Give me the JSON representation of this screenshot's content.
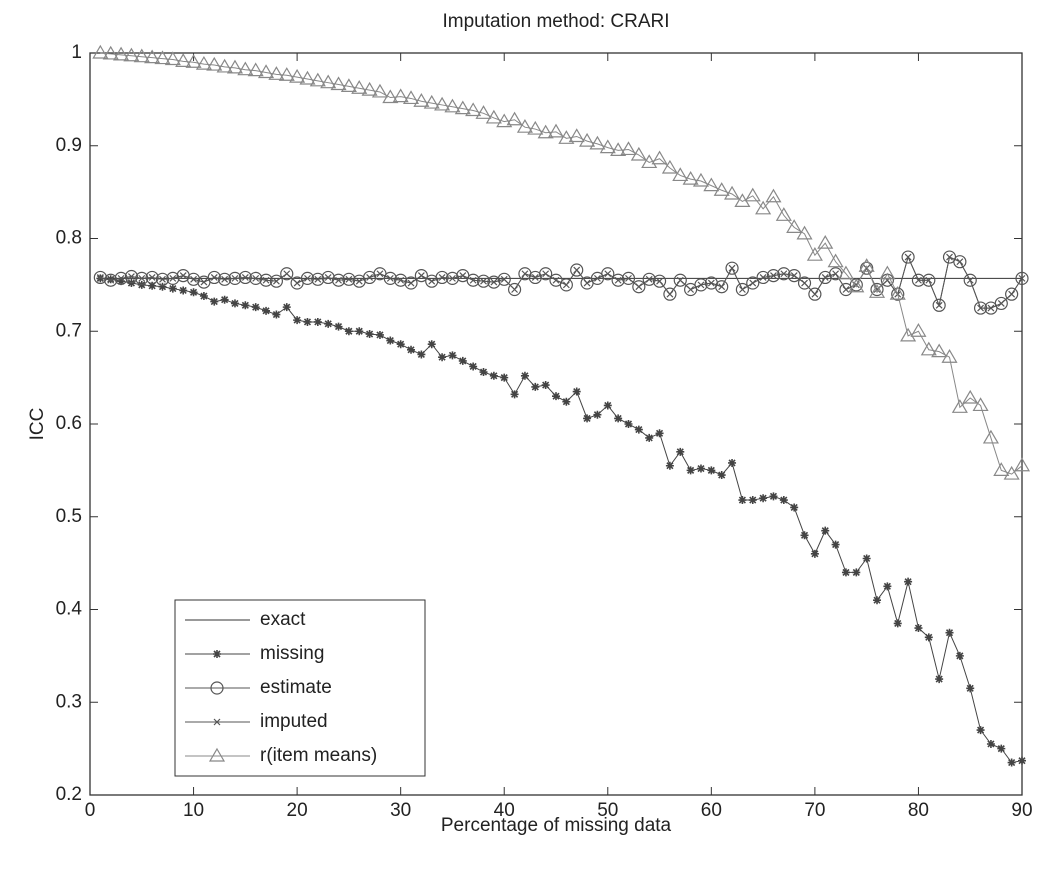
{
  "chart_data": {
    "type": "line",
    "title": "Imputation method: CRARI",
    "xlabel": "Percentage of missing data",
    "ylabel": "ICC",
    "x": [
      1,
      2,
      3,
      4,
      5,
      6,
      7,
      8,
      9,
      10,
      11,
      12,
      13,
      14,
      15,
      16,
      17,
      18,
      19,
      20,
      21,
      22,
      23,
      24,
      25,
      26,
      27,
      28,
      29,
      30,
      31,
      32,
      33,
      34,
      35,
      36,
      37,
      38,
      39,
      40,
      41,
      42,
      43,
      44,
      45,
      46,
      47,
      48,
      49,
      50,
      51,
      52,
      53,
      54,
      55,
      56,
      57,
      58,
      59,
      60,
      61,
      62,
      63,
      64,
      65,
      66,
      67,
      68,
      69,
      70,
      71,
      72,
      73,
      74,
      75,
      76,
      77,
      78,
      79,
      80,
      81,
      82,
      83,
      84,
      85,
      86,
      87,
      88,
      89,
      90
    ],
    "xlim": [
      0,
      90
    ],
    "xticks": [
      0,
      10,
      20,
      30,
      40,
      50,
      60,
      70,
      80,
      90
    ],
    "ylim": [
      0.2,
      1
    ],
    "yticks": [
      0.2,
      0.3,
      0.4,
      0.5,
      0.6,
      0.7,
      0.8,
      0.9,
      1
    ],
    "legend_position": "lower left",
    "series": [
      {
        "name": "exact",
        "color": "#333333",
        "marker": "none",
        "values": [
          0.757,
          0.757,
          0.757,
          0.757,
          0.757,
          0.757,
          0.757,
          0.757,
          0.757,
          0.757,
          0.757,
          0.757,
          0.757,
          0.757,
          0.757,
          0.757,
          0.757,
          0.757,
          0.757,
          0.757,
          0.757,
          0.757,
          0.757,
          0.757,
          0.757,
          0.757,
          0.757,
          0.757,
          0.757,
          0.757,
          0.757,
          0.757,
          0.757,
          0.757,
          0.757,
          0.757,
          0.757,
          0.757,
          0.757,
          0.757,
          0.757,
          0.757,
          0.757,
          0.757,
          0.757,
          0.757,
          0.757,
          0.757,
          0.757,
          0.757,
          0.757,
          0.757,
          0.757,
          0.757,
          0.757,
          0.757,
          0.757,
          0.757,
          0.757,
          0.757,
          0.757,
          0.757,
          0.757,
          0.757,
          0.757,
          0.757,
          0.757,
          0.757,
          0.757,
          0.757,
          0.757,
          0.757,
          0.757,
          0.757,
          0.757,
          0.757,
          0.757,
          0.757,
          0.757,
          0.757,
          0.757,
          0.757,
          0.757,
          0.757,
          0.757,
          0.757,
          0.757,
          0.757,
          0.757,
          0.757
        ]
      },
      {
        "name": "missing",
        "color": "#444444",
        "marker": "star",
        "values": [
          0.757,
          0.756,
          0.754,
          0.752,
          0.75,
          0.749,
          0.748,
          0.746,
          0.744,
          0.742,
          0.738,
          0.732,
          0.734,
          0.73,
          0.728,
          0.726,
          0.722,
          0.718,
          0.726,
          0.712,
          0.71,
          0.71,
          0.708,
          0.705,
          0.7,
          0.7,
          0.697,
          0.696,
          0.69,
          0.686,
          0.68,
          0.675,
          0.686,
          0.672,
          0.674,
          0.668,
          0.662,
          0.656,
          0.652,
          0.65,
          0.632,
          0.652,
          0.64,
          0.642,
          0.63,
          0.624,
          0.635,
          0.606,
          0.61,
          0.62,
          0.606,
          0.6,
          0.594,
          0.585,
          0.59,
          0.555,
          0.57,
          0.55,
          0.552,
          0.55,
          0.545,
          0.558,
          0.518,
          0.518,
          0.52,
          0.522,
          0.518,
          0.51,
          0.48,
          0.46,
          0.485,
          0.47,
          0.44,
          0.44,
          0.455,
          0.41,
          0.425,
          0.385,
          0.43,
          0.38,
          0.37,
          0.325,
          0.375,
          0.35,
          0.315,
          0.27,
          0.255,
          0.25,
          0.235,
          0.237
        ]
      },
      {
        "name": "estimate",
        "color": "#555555",
        "marker": "circle",
        "values": [
          0.758,
          0.755,
          0.757,
          0.759,
          0.757,
          0.758,
          0.756,
          0.757,
          0.76,
          0.756,
          0.753,
          0.758,
          0.756,
          0.757,
          0.758,
          0.757,
          0.755,
          0.754,
          0.762,
          0.752,
          0.757,
          0.756,
          0.758,
          0.755,
          0.756,
          0.754,
          0.758,
          0.762,
          0.757,
          0.755,
          0.752,
          0.76,
          0.754,
          0.758,
          0.757,
          0.76,
          0.755,
          0.754,
          0.753,
          0.756,
          0.745,
          0.762,
          0.758,
          0.762,
          0.755,
          0.75,
          0.766,
          0.752,
          0.757,
          0.762,
          0.755,
          0.757,
          0.748,
          0.756,
          0.754,
          0.74,
          0.755,
          0.745,
          0.75,
          0.752,
          0.748,
          0.768,
          0.745,
          0.752,
          0.758,
          0.76,
          0.762,
          0.76,
          0.752,
          0.74,
          0.758,
          0.762,
          0.745,
          0.75,
          0.768,
          0.745,
          0.755,
          0.74,
          0.78,
          0.755,
          0.755,
          0.728,
          0.78,
          0.775,
          0.755,
          0.725,
          0.725,
          0.73,
          0.74,
          0.757
        ]
      },
      {
        "name": "imputed",
        "color": "#555555",
        "marker": "x",
        "values": [
          0.758,
          0.755,
          0.757,
          0.759,
          0.757,
          0.758,
          0.756,
          0.757,
          0.76,
          0.756,
          0.753,
          0.758,
          0.756,
          0.757,
          0.758,
          0.757,
          0.755,
          0.754,
          0.762,
          0.752,
          0.757,
          0.756,
          0.758,
          0.755,
          0.756,
          0.754,
          0.758,
          0.762,
          0.757,
          0.755,
          0.752,
          0.76,
          0.754,
          0.758,
          0.757,
          0.76,
          0.755,
          0.754,
          0.753,
          0.756,
          0.745,
          0.762,
          0.758,
          0.762,
          0.755,
          0.75,
          0.766,
          0.752,
          0.757,
          0.762,
          0.755,
          0.757,
          0.748,
          0.756,
          0.754,
          0.74,
          0.755,
          0.745,
          0.75,
          0.752,
          0.748,
          0.768,
          0.745,
          0.752,
          0.758,
          0.76,
          0.762,
          0.76,
          0.752,
          0.74,
          0.758,
          0.762,
          0.745,
          0.75,
          0.768,
          0.745,
          0.755,
          0.74,
          0.78,
          0.755,
          0.755,
          0.728,
          0.78,
          0.775,
          0.755,
          0.725,
          0.725,
          0.73,
          0.74,
          0.757
        ]
      },
      {
        "name": "r(item means)",
        "color": "#888888",
        "marker": "triangle",
        "values": [
          1,
          0.999,
          0.998,
          0.997,
          0.996,
          0.995,
          0.994,
          0.993,
          0.991,
          0.99,
          0.988,
          0.987,
          0.985,
          0.984,
          0.982,
          0.981,
          0.979,
          0.977,
          0.976,
          0.974,
          0.972,
          0.97,
          0.968,
          0.966,
          0.964,
          0.962,
          0.96,
          0.958,
          0.952,
          0.953,
          0.951,
          0.948,
          0.946,
          0.944,
          0.942,
          0.94,
          0.938,
          0.935,
          0.93,
          0.926,
          0.928,
          0.92,
          0.918,
          0.914,
          0.915,
          0.908,
          0.91,
          0.905,
          0.902,
          0.898,
          0.895,
          0.896,
          0.89,
          0.882,
          0.886,
          0.876,
          0.868,
          0.864,
          0.862,
          0.857,
          0.852,
          0.848,
          0.84,
          0.846,
          0.832,
          0.845,
          0.825,
          0.812,
          0.805,
          0.782,
          0.795,
          0.775,
          0.762,
          0.748,
          0.77,
          0.742,
          0.762,
          0.74,
          0.695,
          0.7,
          0.68,
          0.678,
          0.672,
          0.618,
          0.628,
          0.62,
          0.585,
          0.55,
          0.546,
          0.555
        ]
      }
    ]
  }
}
